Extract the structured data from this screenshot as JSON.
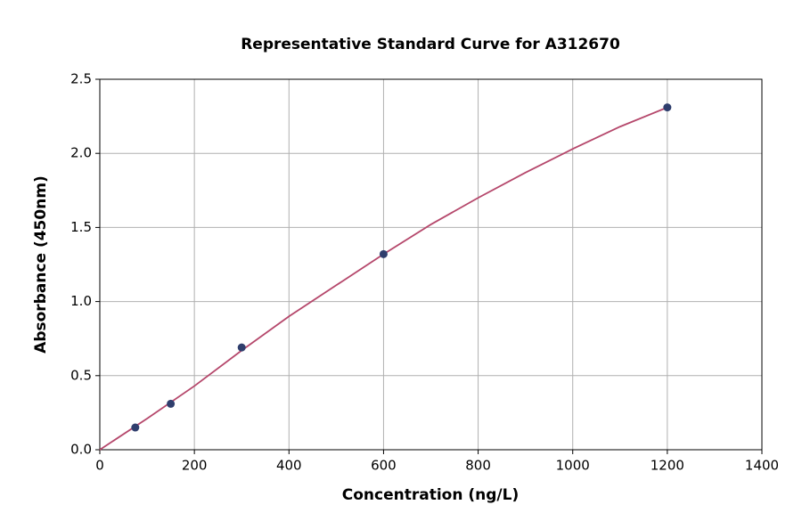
{
  "chart_data": {
    "type": "scatter",
    "title": "Representative Standard Curve for A312670",
    "x_label": "Concentration (ng/L)",
    "y_label": "Absorbance (450nm)",
    "xlim": [
      0,
      1400
    ],
    "ylim": [
      0,
      2.5
    ],
    "xticks": [
      0,
      200,
      400,
      600,
      800,
      1000,
      1200,
      1400
    ],
    "yticks": [
      {
        "value": 0,
        "label": "0.0"
      },
      0.5,
      {
        "value": 1,
        "label": "1.0"
      },
      1.5,
      {
        "value": 2,
        "label": "2.0"
      },
      2.5
    ],
    "grid": true,
    "series": [
      {
        "type": "line",
        "color": "#b5476b",
        "x": [
          0,
          100,
          200,
          300,
          400,
          500,
          600,
          700,
          800,
          900,
          1000,
          1100,
          1200
        ],
        "values": [
          0,
          0.21,
          0.43,
          0.67,
          0.9,
          1.11,
          1.32,
          1.52,
          1.7,
          1.87,
          2.03,
          2.18,
          2.31
        ]
      },
      {
        "type": "scatter",
        "color": "#2f3e6d",
        "x": [
          75,
          150,
          300,
          600,
          1200
        ],
        "values": [
          0.15,
          0.31,
          0.69,
          1.32,
          2.31
        ]
      }
    ]
  }
}
